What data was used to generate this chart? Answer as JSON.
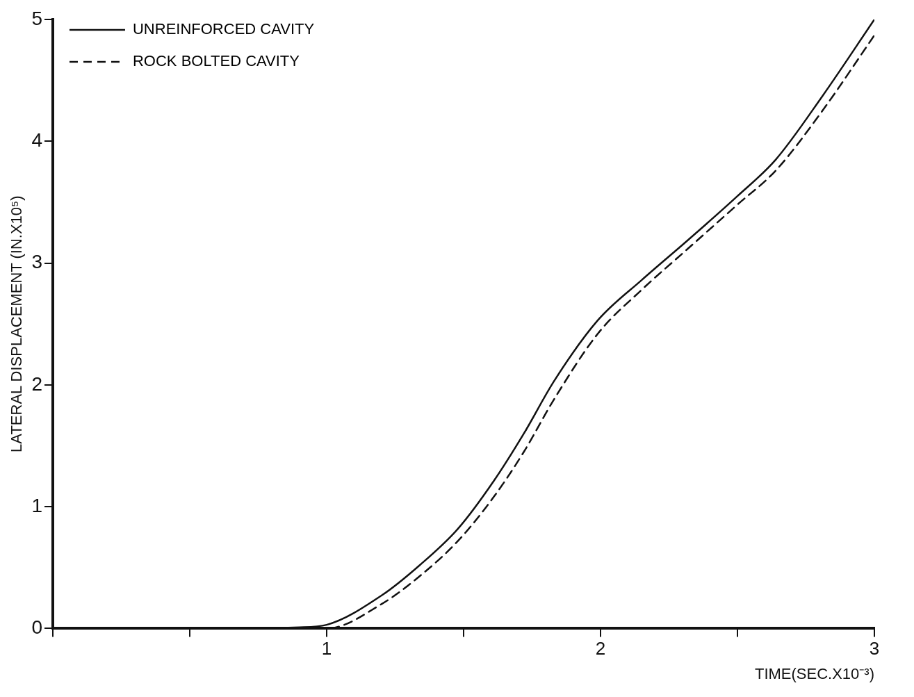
{
  "chart_data": {
    "type": "line",
    "xlabel": "TIME(SEC.X10⁻³)",
    "ylabel": "LATERAL DISPLACEMENT (IN.X10⁵)",
    "xlim": [
      0,
      3
    ],
    "xticks": [
      {
        "value": 0,
        "label": null
      },
      {
        "value": 0.5,
        "label": null
      },
      1,
      {
        "value": 1.5,
        "label": null
      },
      2,
      {
        "value": 2.5,
        "label": null
      },
      3
    ],
    "ylim": [
      0,
      5
    ],
    "yticks": [
      0,
      1,
      2,
      3,
      4,
      5
    ],
    "grid": false,
    "legend": "top left",
    "marker": "none",
    "series": [
      {
        "name": "UNREINFORCED CAVITY",
        "color": "#111111",
        "line_style": "solid",
        "x": [
          0,
          0.5,
          0.9,
          1.0,
          1.2,
          1.34,
          1.48,
          1.61,
          1.72,
          1.83,
          1.99,
          2.15,
          2.32,
          2.5,
          2.64,
          2.81,
          3.0
        ],
        "values": [
          0,
          0,
          0.01,
          0.03,
          0.27,
          0.52,
          0.82,
          1.21,
          1.6,
          2.03,
          2.53,
          2.86,
          3.19,
          3.55,
          3.85,
          4.37,
          5.0
        ]
      },
      {
        "name": "ROCK BOLTED CAVITY",
        "color": "#111111",
        "line_style": "dashed",
        "x": [
          0,
          0.5,
          0.9,
          1.0,
          1.2,
          1.34,
          1.48,
          1.61,
          1.72,
          1.83,
          1.99,
          2.15,
          2.32,
          2.5,
          2.64,
          2.81,
          3.0
        ],
        "values": [
          0,
          0,
          0,
          0,
          0.2,
          0.43,
          0.72,
          1.08,
          1.45,
          1.88,
          2.42,
          2.78,
          3.12,
          3.48,
          3.76,
          4.25,
          4.87
        ]
      }
    ]
  }
}
